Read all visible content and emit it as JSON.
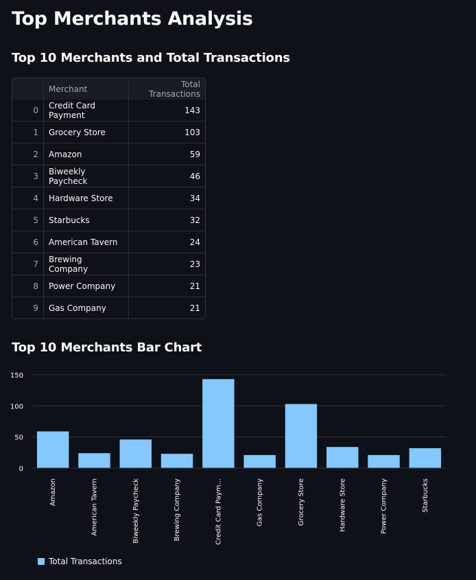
{
  "title": "Top Merchants Analysis",
  "table_section": {
    "heading": "Top 10 Merchants and Total Transactions",
    "columns": [
      "",
      "Merchant",
      "Total Transactions"
    ],
    "rows": [
      {
        "index": "0",
        "merchant": "Credit Card Payment",
        "total": "143"
      },
      {
        "index": "1",
        "merchant": "Grocery Store",
        "total": "103"
      },
      {
        "index": "2",
        "merchant": "Amazon",
        "total": "59"
      },
      {
        "index": "3",
        "merchant": "Biweekly Paycheck",
        "total": "46"
      },
      {
        "index": "4",
        "merchant": "Hardware Store",
        "total": "34"
      },
      {
        "index": "5",
        "merchant": "Starbucks",
        "total": "32"
      },
      {
        "index": "6",
        "merchant": "American Tavern",
        "total": "24"
      },
      {
        "index": "7",
        "merchant": "Brewing Company",
        "total": "23"
      },
      {
        "index": "8",
        "merchant": "Power Company",
        "total": "21"
      },
      {
        "index": "9",
        "merchant": "Gas Company",
        "total": "21"
      }
    ]
  },
  "chart_section": {
    "heading": "Top 10 Merchants Bar Chart"
  },
  "chart_data": {
    "type": "bar",
    "title": "",
    "xlabel": "",
    "ylabel": "",
    "categories": [
      "Amazon",
      "American Tavern",
      "Biweekly Paycheck",
      "Brewing Company",
      "Credit Card Paym...",
      "Gas Company",
      "Grocery Store",
      "Hardware Store",
      "Power Company",
      "Starbucks"
    ],
    "series": [
      {
        "name": "Total Transactions",
        "values": [
          59,
          24,
          46,
          23,
          143,
          21,
          103,
          34,
          21,
          32
        ],
        "color": "#83c9ff"
      }
    ],
    "ylim": [
      0,
      150
    ],
    "yticks": [
      0,
      50,
      100,
      150
    ],
    "grid": true,
    "legend": "bottom-left"
  },
  "colors": {
    "background": "#0e1117",
    "bar": "#83c9ff",
    "text": "#fafafa",
    "muted_text": "#a3a8b4",
    "grid": "#31333f"
  }
}
